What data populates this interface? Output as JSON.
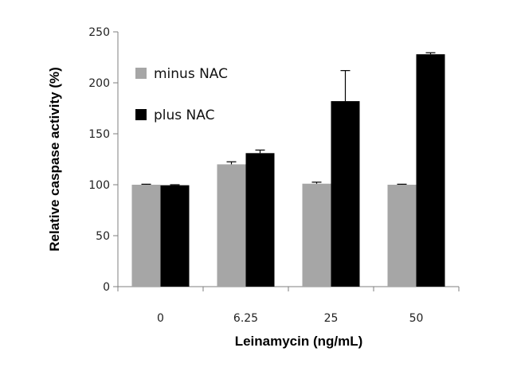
{
  "chart_data": {
    "type": "bar",
    "title": "",
    "xlabel": "Leinamycin (ng/mL)",
    "ylabel": "Relative caspase activity (%)",
    "categories": [
      "0",
      "6.25",
      "25",
      "50"
    ],
    "ylim": [
      0,
      250
    ],
    "yticks": [
      0,
      50,
      100,
      150,
      200,
      250
    ],
    "grid": false,
    "legend_position": "top-left",
    "series": [
      {
        "name": "minus NAC",
        "color": "#a6a6a6",
        "values": [
          100,
          120,
          101,
          100
        ],
        "errors": [
          0.5,
          2.5,
          1.5,
          0.5
        ]
      },
      {
        "name": "plus NAC",
        "color": "#000000",
        "values": [
          99.5,
          131,
          182,
          228
        ],
        "errors": [
          0.5,
          3,
          30,
          1.5
        ]
      }
    ]
  }
}
